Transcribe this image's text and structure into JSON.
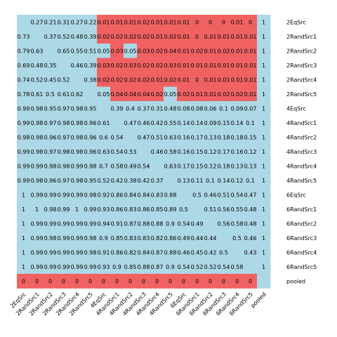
{
  "chart_data": {
    "type": "heatmap",
    "title": "",
    "xlabel": "",
    "ylabel": "",
    "rows": [
      "2EqSrc",
      "2RandSrc1",
      "2RandSrc2",
      "2RandSrc3",
      "2RandSrc4",
      "2RandSrc5",
      "4EqSrc",
      "4RandSrc1",
      "4RandSrc2",
      "4RandSrc3",
      "4RandSrc4",
      "4RandSrc5",
      "6EqSrc",
      "6RandSrc1",
      "6RandSrc2",
      "6RandSrc3",
      "6RandSrc4",
      "6RandSrc5",
      "pooled"
    ],
    "columns": [
      "2EqSrc",
      "2RandSrc1",
      "2RandSrc2",
      "2RandSrc3",
      "2RandSrc4",
      "2RandSrc5",
      "4EqSrc",
      "4RandSrc1",
      "4RandSrc2",
      "4RandSrc3",
      "4RandSrc4",
      "4RandSrc5",
      "6EqSrc",
      "6RandSrc1",
      "6RandSrc2",
      "6RandSrc3",
      "6RandSrc4",
      "6RandSrc5",
      "pooled"
    ],
    "threshold": 0.05,
    "colors": {
      "above": "#add8e6",
      "below": "#f06262",
      "text": "#000000"
    },
    "values": [
      [
        "",
        "0.27",
        "0.21",
        "0.31",
        "0.27",
        "0.22",
        "0.01",
        "0.01",
        "0.01",
        "0.02",
        "0.01",
        "0.01",
        "0.01",
        "0",
        "0",
        "0",
        "0.01",
        "0",
        "1"
      ],
      [
        "0.73",
        "",
        "0.37",
        "0.52",
        "0.48",
        "0.39",
        "0.02",
        "0.02",
        "0.02",
        "0.02",
        "0.01",
        "0.02",
        "0.01",
        "0",
        "0.01",
        "0.01",
        "0.01",
        "0.01",
        "1"
      ],
      [
        "0.79",
        "0.63",
        "",
        "0.65",
        "0.55",
        "0.51",
        "0.05",
        "0.03",
        "0.05",
        "0.03",
        "0.02",
        "0.04",
        "0.01",
        "0.02",
        "0.01",
        "0.02",
        "0.01",
        "0.01",
        "1"
      ],
      [
        "0.69",
        "0.48",
        "0.35",
        "",
        "0.46",
        "0.39",
        "0.03",
        "0.02",
        "0.03",
        "0.02",
        "0.02",
        "0.03",
        "0.01",
        "0.01",
        "0.01",
        "0.01",
        "0.01",
        "0.01",
        "1"
      ],
      [
        "0.74",
        "0.52",
        "0.45",
        "0.52",
        "",
        "0.38",
        "0.02",
        "0.02",
        "0.02",
        "0.02",
        "0.01",
        "0.02",
        "0.01",
        "0",
        "0.01",
        "0.01",
        "0.01",
        "0.01",
        "1"
      ],
      [
        "0.78",
        "0.61",
        "0.5",
        "0.61",
        "0.62",
        "",
        "0.05",
        "0.04",
        "0.04",
        "0.04",
        "0.02",
        "0.05",
        "0.02",
        "0.01",
        "0.01",
        "0.02",
        "0.02",
        "0.01",
        "1"
      ],
      [
        "0.99",
        "0.98",
        "0.95",
        "0.97",
        "0.98",
        "0.95",
        "",
        "0.39",
        "0.4",
        "0.37",
        "0.31",
        "0.48",
        "0.08",
        "0.08",
        "0.06",
        "0.1",
        "0.09",
        "0.07",
        "1"
      ],
      [
        "0.99",
        "0.98",
        "0.97",
        "0.98",
        "0.98",
        "0.96",
        "0.61",
        "",
        "0.47",
        "0.46",
        "0.42",
        "0.55",
        "0.14",
        "0.14",
        "0.09",
        "0.15",
        "0.14",
        "0.1",
        "1"
      ],
      [
        "0.98",
        "0.98",
        "0.96",
        "0.97",
        "0.98",
        "0.96",
        "0.6",
        "0.54",
        "",
        "0.47",
        "0.51",
        "0.63",
        "0.16",
        "0.17",
        "0.13",
        "0.18",
        "0.18",
        "0.15",
        "1"
      ],
      [
        "0.99",
        "0.98",
        "0.97",
        "0.98",
        "0.98",
        "0.96",
        "0.63",
        "0.54",
        "0.53",
        "",
        "0.46",
        "0.58",
        "0.16",
        "0.15",
        "0.12",
        "0.17",
        "0.16",
        "0.12",
        "1"
      ],
      [
        "0.99",
        "0.99",
        "0.98",
        "0.98",
        "0.99",
        "0.98",
        "0.7",
        "0.58",
        "0.49",
        "0.54",
        "",
        "0.63",
        "0.17",
        "0.15",
        "0.12",
        "0.18",
        "0.13",
        "0.13",
        "1"
      ],
      [
        "0.99",
        "0.98",
        "0.96",
        "0.97",
        "0.98",
        "0.95",
        "0.52",
        "0.42",
        "0.38",
        "0.42",
        "0.37",
        "",
        "0.13",
        "0.11",
        "0.1",
        "0.14",
        "0.12",
        "0.1",
        "1"
      ],
      [
        "1",
        "0.99",
        "0.99",
        "0.99",
        "0.99",
        "0.98",
        "0.92",
        "0.86",
        "0.84",
        "0.84",
        "0.83",
        "0.88",
        "",
        "0.5",
        "0.46",
        "0.51",
        "0.54",
        "0.47",
        "1"
      ],
      [
        "1",
        "1",
        "0.98",
        "0.99",
        "1",
        "0.99",
        "0.93",
        "0.86",
        "0.83",
        "0.86",
        "0.85",
        "0.89",
        "0.5",
        "",
        "0.51",
        "0.56",
        "0.55",
        "0.48",
        "1"
      ],
      [
        "1",
        "0.99",
        "0.99",
        "0.99",
        "0.99",
        "0.99",
        "0.94",
        "0.91",
        "0.87",
        "0.88",
        "0.88",
        "0.9",
        "0.54",
        "0.49",
        "",
        "0.56",
        "0.58",
        "0.48",
        "1"
      ],
      [
        "1",
        "0.99",
        "0.98",
        "0.99",
        "0.99",
        "0.98",
        "0.9",
        "0.85",
        "0.83",
        "0.83",
        "0.82",
        "0.86",
        "0.49",
        "0.44",
        "0.44",
        "",
        "0.5",
        "0.46",
        "1"
      ],
      [
        "1",
        "0.99",
        "0.99",
        "0.99",
        "0.99",
        "0.98",
        "0.91",
        "0.86",
        "0.82",
        "0.84",
        "0.87",
        "0.88",
        "0.46",
        "0.45",
        "0.42",
        "0.5",
        "",
        "0.43",
        "1"
      ],
      [
        "1",
        "0.99",
        "0.99",
        "0.99",
        "0.99",
        "0.99",
        "0.93",
        "0.9",
        "0.85",
        "0.88",
        "0.87",
        "0.9",
        "0.54",
        "0.52",
        "0.52",
        "0.54",
        "0.58",
        "",
        "1"
      ],
      [
        "0",
        "0",
        "0",
        "0",
        "0",
        "0",
        "0",
        "0",
        "0",
        "0",
        "0",
        "0",
        "0",
        "0",
        "0",
        "0",
        "0",
        "0",
        ""
      ]
    ]
  }
}
